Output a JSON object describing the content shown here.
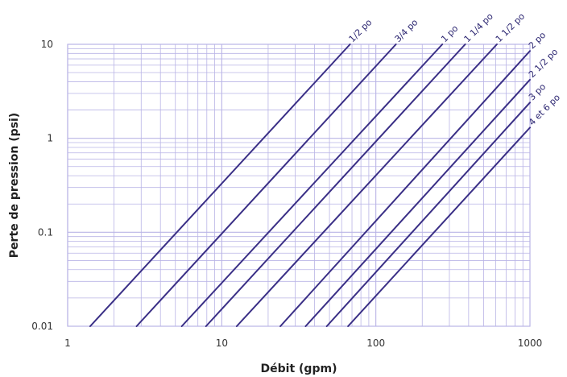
{
  "chart_data": {
    "type": "line",
    "title": "",
    "xlabel": "Débit (gpm)",
    "ylabel": "Perte de pression (psi)",
    "x_scale": "log",
    "y_scale": "log",
    "xlim": [
      1,
      1000
    ],
    "ylim": [
      0.01,
      10
    ],
    "x_ticks": [
      "1",
      "10",
      "100",
      "1000"
    ],
    "y_ticks": [
      "0.01",
      "0.1",
      "1",
      "10"
    ],
    "grid": true,
    "line_color": "#3a2f86",
    "grid_color": "#b9b4e6",
    "series": [
      {
        "name": "1/2 po",
        "x": [
          1.4,
          68
        ],
        "y": [
          0.01,
          10
        ]
      },
      {
        "name": "3/4 po",
        "x": [
          2.8,
          135
        ],
        "y": [
          0.01,
          10
        ]
      },
      {
        "name": "1 po",
        "x": [
          5.5,
          270
        ],
        "y": [
          0.01,
          10
        ]
      },
      {
        "name": "1 1/4 po",
        "x": [
          7.9,
          380
        ],
        "y": [
          0.01,
          10
        ]
      },
      {
        "name": "1 1/2 po",
        "x": [
          12.5,
          610
        ],
        "y": [
          0.01,
          10
        ]
      },
      {
        "name": "2 po",
        "x": [
          24,
          1000
        ],
        "y": [
          0.01,
          8.5
        ]
      },
      {
        "name": "2 1/2 po",
        "x": [
          35,
          1000
        ],
        "y": [
          0.01,
          4.2
        ]
      },
      {
        "name": "3 po",
        "x": [
          48,
          1000
        ],
        "y": [
          0.01,
          2.4
        ]
      },
      {
        "name": "4 et 6 po",
        "x": [
          66,
          1000
        ],
        "y": [
          0.01,
          1.3
        ]
      }
    ]
  }
}
